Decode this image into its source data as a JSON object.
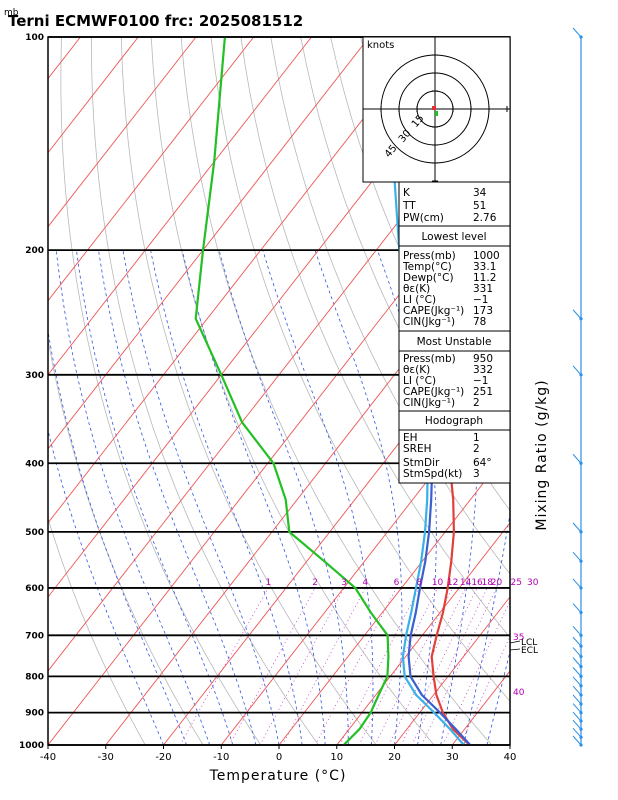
{
  "chart_data": {
    "type": "line",
    "title": "Terni ECMWF0100  frc: 2025081512",
    "pressure_unit": "mb",
    "xlabel": "Temperature (°C)",
    "right_label": "Mixing Ratio (g/kg)",
    "xlim": [
      -40,
      40
    ],
    "ylim_mb": [
      1000,
      100
    ],
    "x_ticks": [
      "-40",
      "-30",
      "-20",
      "-10",
      "0",
      "10",
      "20",
      "30",
      "40"
    ],
    "p_ticks": [
      "100",
      "200",
      "300",
      "400",
      "500",
      "600",
      "700",
      "800",
      "900",
      "1000"
    ],
    "mixing_ratio_labels": [
      "1",
      "2",
      "3",
      "4",
      "6",
      "8",
      "10",
      "12",
      "14",
      "16",
      "18",
      "20",
      "25",
      "30"
    ],
    "right_labels": {
      "t35": "35",
      "t40": "40",
      "lcl": "LCL",
      "ecl": "ECL"
    },
    "series": [
      {
        "name": "Temperature",
        "color": "#e0403a",
        "points": [
          [
            1000,
            33.0
          ],
          [
            950,
            28.0
          ],
          [
            900,
            24.0
          ],
          [
            850,
            20.5
          ],
          [
            800,
            17.5
          ],
          [
            750,
            14.5
          ],
          [
            700,
            12.5
          ],
          [
            650,
            10.5
          ],
          [
            600,
            8.0
          ],
          [
            550,
            5.0
          ],
          [
            500,
            1.5
          ],
          [
            450,
            -3.0
          ],
          [
            400,
            -8.5
          ],
          [
            350,
            -14.5
          ],
          [
            300,
            -22.0
          ],
          [
            250,
            -31.0
          ],
          [
            200,
            -42.0
          ],
          [
            150,
            -54.0
          ],
          [
            100,
            -64.0
          ]
        ]
      },
      {
        "name": "Dewpoint",
        "color": "#22c022",
        "points": [
          [
            1000,
            11.2
          ],
          [
            950,
            11.8
          ],
          [
            900,
            11.5
          ],
          [
            850,
            10.5
          ],
          [
            800,
            9.5
          ],
          [
            750,
            7.0
          ],
          [
            700,
            4.0
          ],
          [
            650,
            -2.0
          ],
          [
            600,
            -8.0
          ],
          [
            550,
            -17.0
          ],
          [
            500,
            -27.0
          ],
          [
            450,
            -32.0
          ],
          [
            400,
            -39.0
          ],
          [
            350,
            -50.0
          ],
          [
            300,
            -60.0
          ],
          [
            250,
            -72.0
          ],
          [
            200,
            -80.0
          ],
          [
            150,
            -90.0
          ],
          [
            100,
            -105.0
          ]
        ]
      },
      {
        "name": "Parcel",
        "color": "#3a5fd0",
        "points": [
          [
            1000,
            33.1
          ],
          [
            950,
            28.5
          ],
          [
            900,
            23.5
          ],
          [
            850,
            18.0
          ],
          [
            800,
            13.5
          ],
          [
            750,
            10.5
          ],
          [
            720,
            9.0
          ],
          [
            700,
            8.0
          ],
          [
            650,
            5.8
          ],
          [
            600,
            3.2
          ],
          [
            550,
            0.5
          ],
          [
            500,
            -2.8
          ],
          [
            450,
            -6.8
          ],
          [
            400,
            -11.5
          ],
          [
            350,
            -17.5
          ],
          [
            300,
            -25.0
          ],
          [
            250,
            -34.0
          ],
          [
            200,
            -45.0
          ],
          [
            150,
            -58.0
          ],
          [
            120,
            -68.0
          ]
        ]
      },
      {
        "name": "Virtual parcel",
        "color": "#3ab0e8",
        "points": [
          [
            1000,
            32.0
          ],
          [
            950,
            27.5
          ],
          [
            900,
            22.5
          ],
          [
            850,
            17.0
          ],
          [
            800,
            12.5
          ],
          [
            750,
            9.5
          ],
          [
            700,
            7.2
          ],
          [
            650,
            5.0
          ],
          [
            600,
            2.5
          ],
          [
            550,
            -0.2
          ],
          [
            500,
            -3.5
          ],
          [
            450,
            -7.5
          ],
          [
            400,
            -12.3
          ],
          [
            350,
            -18.3
          ],
          [
            300,
            -25.8
          ],
          [
            250,
            -35.0
          ],
          [
            200,
            -46.0
          ],
          [
            150,
            -59.0
          ],
          [
            120,
            -69.0
          ]
        ]
      }
    ],
    "hodograph": {
      "units_label": "knots",
      "ring_labels": [
        "15",
        "30",
        "45"
      ]
    },
    "indices": {
      "k_label": "K",
      "k": "34",
      "tt_label": "TT",
      "tt": "51",
      "pw_label": "PW(cm)",
      "pw": "2.76"
    },
    "lowest_level": {
      "header": "Lowest level",
      "rows": [
        {
          "label": "Press(mb)",
          "value": "1000"
        },
        {
          "label": "Temp(°C)",
          "value": "33.1"
        },
        {
          "label": "Dewp(°C)",
          "value": "11.2"
        },
        {
          "label": "θε(K)",
          "value": "331"
        },
        {
          "label": "LI (°C)",
          "value": "−1"
        },
        {
          "label": "CAPE(Jkg⁻¹)",
          "value": "173"
        },
        {
          "label": "CIN(Jkg⁻¹)",
          "value": "78"
        }
      ]
    },
    "most_unstable": {
      "header": "Most Unstable",
      "rows": [
        {
          "label": "Press(mb)",
          "value": "950"
        },
        {
          "label": "θε(K)",
          "value": "332"
        },
        {
          "label": "LI (°C)",
          "value": "−1"
        },
        {
          "label": "CAPE(Jkg⁻¹)",
          "value": "251"
        },
        {
          "label": "CIN(Jkg⁻¹)",
          "value": "2"
        }
      ]
    },
    "hodograph_params": {
      "header": "Hodograph",
      "rows": [
        {
          "label": "EH",
          "value": "1"
        },
        {
          "label": "SREH",
          "value": "2"
        },
        {
          "label": "StmDir",
          "value": "64°"
        },
        {
          "label": "StmSpd(kt)",
          "value": "3"
        }
      ]
    },
    "wind_barbs_mb": [
      1000,
      975,
      950,
      925,
      900,
      875,
      850,
      825,
      800,
      775,
      750,
      725,
      700,
      650,
      600,
      550,
      500,
      400,
      300,
      250,
      100
    ],
    "colors": {
      "isotherm": "#ee5555",
      "dry_adiabat": "#b8b8b8",
      "moist_adiabat": "#3355dd",
      "mixing_ratio": "#c040c0",
      "isobar": "#000000",
      "barb": "#2a8fe6"
    }
  }
}
